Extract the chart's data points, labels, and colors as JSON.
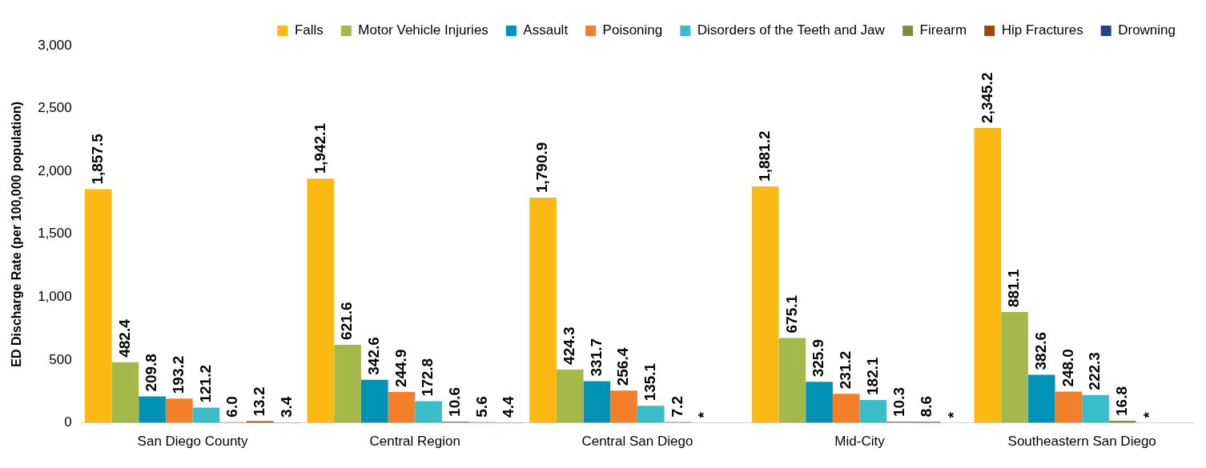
{
  "chart_data": {
    "type": "bar",
    "ylabel": "ED Discharge Rate (per 100,000 population)",
    "categories": [
      "San Diego County",
      "Central Region",
      "Central San Diego",
      "Mid-City",
      "Southeastern San Diego"
    ],
    "series": [
      {
        "name": "Falls",
        "color": "#fdb913",
        "values": [
          1857.5,
          1942.1,
          1790.9,
          1881.2,
          2345.2
        ],
        "value_labels": [
          "1,857.5",
          "1,942.1",
          "1,790.9",
          "1,881.2",
          "2,345.2"
        ]
      },
      {
        "name": "Motor Vehicle Injuries",
        "color": "#a5b94a",
        "values": [
          482.4,
          621.6,
          424.3,
          675.1,
          881.1
        ],
        "value_labels": [
          "482.4",
          "621.6",
          "424.3",
          "675.1",
          "881.1"
        ]
      },
      {
        "name": "Assault",
        "color": "#0093b5",
        "values": [
          209.8,
          342.6,
          331.7,
          325.9,
          382.6
        ],
        "value_labels": [
          "209.8",
          "342.6",
          "331.7",
          "325.9",
          "382.6"
        ]
      },
      {
        "name": "Poisoning",
        "color": "#f37f2a",
        "values": [
          193.2,
          244.9,
          256.4,
          231.2,
          248.0
        ],
        "value_labels": [
          "193.2",
          "244.9",
          "256.4",
          "231.2",
          "248.0"
        ]
      },
      {
        "name": "Disorders of the Teeth and Jaw",
        "color": "#38bec9",
        "values": [
          121.2,
          172.8,
          135.1,
          182.1,
          222.3
        ],
        "value_labels": [
          "121.2",
          "172.8",
          "135.1",
          "182.1",
          "222.3"
        ]
      },
      {
        "name": "Firearm",
        "color": "#76923c",
        "values": [
          6.0,
          10.6,
          7.2,
          10.3,
          16.8
        ],
        "value_labels": [
          "6.0",
          "10.6",
          "7.2",
          "10.3",
          "16.8"
        ]
      },
      {
        "name": "Hip Fractures",
        "color": "#a0450f",
        "values": [
          13.2,
          5.6,
          null,
          8.6,
          null
        ],
        "value_labels": [
          "13.2",
          "5.6",
          "*",
          "8.6",
          "*"
        ]
      },
      {
        "name": "Drowning",
        "color": "#23457e",
        "values": [
          3.4,
          4.4,
          null,
          null,
          null
        ],
        "value_labels": [
          "3.4",
          "4.4",
          null,
          "*",
          null
        ]
      }
    ],
    "ylim": [
      0,
      3000
    ],
    "yticks": [
      {
        "value": 0,
        "label": "0"
      },
      {
        "value": 500,
        "label": "500"
      },
      {
        "value": 1000,
        "label": "1,000"
      },
      {
        "value": 1500,
        "label": "1,500"
      },
      {
        "value": 2000,
        "label": "2,000"
      },
      {
        "value": 2500,
        "label": "2,500"
      },
      {
        "value": 3000,
        "label": "3,000"
      }
    ],
    "legend": "top"
  }
}
